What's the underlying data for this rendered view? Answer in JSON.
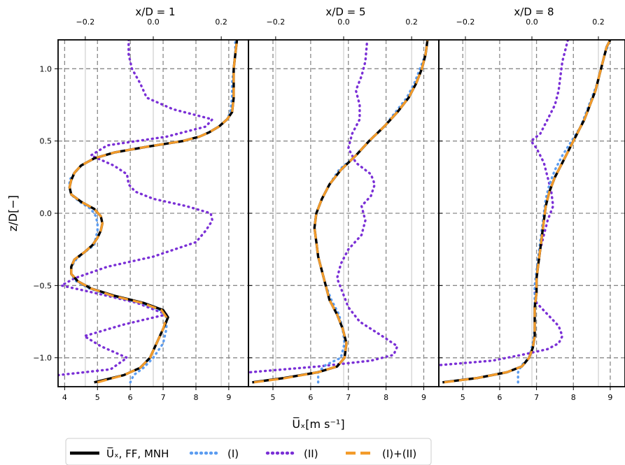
{
  "figure": {
    "ylabel": "z/D[−]",
    "xlabel": "U̅ₓ[m s⁻¹]",
    "legend": {
      "placement": "bottom-center",
      "entries": [
        {
          "label": "U̅ₓ, FF, MNH",
          "color": "#000000",
          "style": "solid"
        },
        {
          "label": "(I)",
          "color": "#5b9cf0",
          "style": "dotted"
        },
        {
          "label": "(II)",
          "color": "#7a2fd6",
          "style": "dotted"
        },
        {
          "label": "(I)+(II)",
          "color": "#f39b2a",
          "style": "dashed"
        }
      ]
    }
  },
  "chart_data": [
    {
      "type": "line",
      "title": "x/D = 1",
      "xlim": [
        3.8,
        9.6
      ],
      "xticks": [
        4,
        5,
        6,
        7,
        8,
        9
      ],
      "top_xlim": [
        -0.28,
        0.28
      ],
      "top_xticks": [
        -0.2,
        0.0,
        0.2
      ],
      "ylim": [
        -1.2,
        1.2
      ],
      "yticks": [
        -1.0,
        -0.5,
        0.0,
        0.5,
        1.0
      ],
      "grid": true,
      "series": [
        {
          "name": "U̅ₓ, FF, MNH",
          "z": [
            -1.17,
            -1.12,
            -1.07,
            -1.0,
            -0.9,
            -0.8,
            -0.72,
            -0.67,
            -0.62,
            -0.57,
            -0.52,
            -0.47,
            -0.42,
            -0.37,
            -0.32,
            -0.27,
            -0.22,
            -0.17,
            -0.12,
            -0.07,
            -0.02,
            0.03,
            0.08,
            0.13,
            0.18,
            0.23,
            0.28,
            0.33,
            0.38,
            0.42,
            0.46,
            0.5,
            0.53,
            0.56,
            0.6,
            0.65,
            0.7,
            0.8,
            0.9,
            1.0,
            1.1,
            1.2
          ],
          "u": [
            4.9,
            5.8,
            6.3,
            6.6,
            6.8,
            7.0,
            7.15,
            7.0,
            6.4,
            5.5,
            4.8,
            4.4,
            4.2,
            4.2,
            4.3,
            4.6,
            4.85,
            5.0,
            5.1,
            5.15,
            5.1,
            4.9,
            4.5,
            4.2,
            4.15,
            4.2,
            4.3,
            4.5,
            4.9,
            5.5,
            6.5,
            7.6,
            8.1,
            8.4,
            8.7,
            8.95,
            9.1,
            9.15,
            9.15,
            9.15,
            9.2,
            9.25
          ]
        },
        {
          "name": "(I)",
          "z": [
            -1.17,
            -1.12,
            -1.07,
            -1.0,
            -0.9,
            -0.8,
            -0.72,
            -0.67,
            -0.62,
            -0.57,
            -0.52,
            -0.47,
            -0.42,
            -0.37,
            -0.32,
            -0.27,
            -0.22,
            -0.17,
            -0.12,
            -0.07,
            -0.02,
            0.03,
            0.08,
            0.13,
            0.18,
            0.23,
            0.28,
            0.33,
            0.38,
            0.42,
            0.46,
            0.5,
            0.53,
            0.56,
            0.6,
            0.65,
            0.7,
            0.8,
            0.9,
            1.0,
            1.1,
            1.2
          ],
          "u": [
            6.0,
            6.1,
            6.4,
            6.7,
            7.0,
            7.1,
            7.1,
            6.9,
            6.3,
            5.4,
            4.75,
            4.35,
            4.2,
            4.2,
            4.35,
            4.6,
            4.9,
            4.95,
            5.0,
            5.0,
            4.95,
            4.8,
            4.45,
            4.2,
            4.15,
            4.15,
            4.3,
            4.5,
            4.9,
            5.5,
            6.5,
            7.6,
            8.1,
            8.4,
            8.7,
            8.95,
            9.05,
            9.1,
            9.1,
            9.15,
            9.2,
            9.2
          ]
        },
        {
          "name": "(II)",
          "z": [
            -1.12,
            -1.08,
            -1.0,
            -0.92,
            -0.85,
            -0.77,
            -0.7,
            -0.62,
            -0.55,
            -0.5,
            -0.45,
            -0.37,
            -0.3,
            -0.2,
            -0.12,
            -0.05,
            0.0,
            0.05,
            0.1,
            0.15,
            0.2,
            0.27,
            0.33,
            0.4,
            0.47,
            0.53,
            0.6,
            0.65,
            0.72,
            0.8,
            0.9,
            1.0,
            1.1,
            1.2
          ],
          "u": [
            3.8,
            5.4,
            5.9,
            5.1,
            4.6,
            5.8,
            7.1,
            6.2,
            4.9,
            3.9,
            4.3,
            5.3,
            6.7,
            8.0,
            8.3,
            8.5,
            8.45,
            7.7,
            6.7,
            6.15,
            5.95,
            5.9,
            5.5,
            4.8,
            5.3,
            7.1,
            8.3,
            8.5,
            7.3,
            6.5,
            6.3,
            6.05,
            5.95,
            5.95
          ]
        },
        {
          "name": "(I)+(II)",
          "z": [
            -1.17,
            -1.12,
            -1.07,
            -1.0,
            -0.9,
            -0.8,
            -0.72,
            -0.67,
            -0.62,
            -0.57,
            -0.52,
            -0.47,
            -0.42,
            -0.37,
            -0.32,
            -0.27,
            -0.22,
            -0.17,
            -0.12,
            -0.07,
            -0.02,
            0.03,
            0.08,
            0.13,
            0.18,
            0.23,
            0.28,
            0.33,
            0.38,
            0.42,
            0.46,
            0.5,
            0.53,
            0.56,
            0.6,
            0.65,
            0.7,
            0.8,
            0.9,
            1.0,
            1.1,
            1.2
          ],
          "u": [
            5.0,
            5.8,
            6.3,
            6.6,
            6.8,
            7.0,
            7.1,
            6.95,
            6.35,
            5.45,
            4.8,
            4.4,
            4.2,
            4.2,
            4.3,
            4.6,
            4.85,
            5.0,
            5.1,
            5.15,
            5.1,
            4.9,
            4.5,
            4.2,
            4.15,
            4.2,
            4.3,
            4.5,
            4.9,
            5.5,
            6.5,
            7.6,
            8.1,
            8.4,
            8.7,
            8.95,
            9.1,
            9.15,
            9.15,
            9.15,
            9.2,
            9.25
          ]
        }
      ]
    },
    {
      "type": "line",
      "title": "x/D = 5",
      "xlim": [
        4.35,
        9.4
      ],
      "xticks": [
        5,
        6,
        7,
        8,
        9
      ],
      "top_xlim": [
        -0.28,
        0.28
      ],
      "top_xticks": [
        -0.2,
        0.0,
        0.2
      ],
      "ylim": [
        -1.2,
        1.2
      ],
      "yticks": [
        -1.0,
        -0.5,
        0.0,
        0.5,
        1.0
      ],
      "grid": true,
      "series": [
        {
          "name": "U̅ₓ, FF, MNH",
          "z": [
            -1.17,
            -1.14,
            -1.1,
            -1.06,
            -1.0,
            -0.9,
            -0.8,
            -0.7,
            -0.6,
            -0.5,
            -0.4,
            -0.3,
            -0.2,
            -0.1,
            0.0,
            0.1,
            0.2,
            0.3,
            0.4,
            0.5,
            0.6,
            0.7,
            0.8,
            0.9,
            1.0,
            1.1,
            1.2
          ],
          "u": [
            4.45,
            5.3,
            6.2,
            6.7,
            6.9,
            6.95,
            6.85,
            6.7,
            6.5,
            6.4,
            6.3,
            6.2,
            6.15,
            6.1,
            6.15,
            6.3,
            6.5,
            6.8,
            7.2,
            7.55,
            7.95,
            8.3,
            8.6,
            8.8,
            8.95,
            9.05,
            9.1
          ]
        },
        {
          "name": "(I)",
          "z": [
            -1.17,
            -1.1,
            -1.05,
            -1.0,
            -0.9,
            -0.8,
            -0.7,
            -0.6,
            -0.5,
            -0.4,
            -0.3,
            -0.2,
            -0.1,
            0.0,
            0.1,
            0.2,
            0.3,
            0.4,
            0.5,
            0.6,
            0.7,
            0.8,
            0.9,
            1.0,
            1.1,
            1.2
          ],
          "u": [
            6.2,
            6.2,
            6.4,
            6.8,
            6.9,
            6.85,
            6.75,
            6.55,
            6.4,
            6.3,
            6.2,
            6.15,
            6.1,
            6.15,
            6.3,
            6.5,
            6.75,
            7.2,
            7.55,
            7.95,
            8.25,
            8.55,
            8.75,
            8.9,
            9.05,
            9.1
          ]
        },
        {
          "name": "(II)",
          "z": [
            -1.1,
            -1.06,
            -1.02,
            -0.98,
            -0.92,
            -0.85,
            -0.75,
            -0.65,
            -0.55,
            -0.45,
            -0.35,
            -0.25,
            -0.15,
            -0.05,
            0.05,
            0.12,
            0.2,
            0.27,
            0.35,
            0.45,
            0.55,
            0.65,
            0.75,
            0.85,
            0.95,
            1.05,
            1.2
          ],
          "u": [
            4.4,
            6.2,
            7.6,
            8.2,
            8.3,
            7.9,
            7.3,
            7.0,
            6.85,
            6.7,
            6.8,
            7.0,
            7.35,
            7.45,
            7.35,
            7.6,
            7.7,
            7.6,
            7.2,
            7.0,
            7.1,
            7.3,
            7.3,
            7.2,
            7.35,
            7.45,
            7.5
          ]
        },
        {
          "name": "(I)+(II)",
          "z": [
            -1.17,
            -1.14,
            -1.1,
            -1.06,
            -1.0,
            -0.9,
            -0.8,
            -0.7,
            -0.6,
            -0.5,
            -0.4,
            -0.3,
            -0.2,
            -0.1,
            0.0,
            0.1,
            0.2,
            0.3,
            0.4,
            0.5,
            0.6,
            0.7,
            0.8,
            0.9,
            1.0,
            1.1,
            1.2
          ],
          "u": [
            4.5,
            5.35,
            6.2,
            6.7,
            6.9,
            6.95,
            6.85,
            6.7,
            6.5,
            6.4,
            6.3,
            6.2,
            6.15,
            6.1,
            6.15,
            6.3,
            6.5,
            6.8,
            7.2,
            7.55,
            7.95,
            8.3,
            8.6,
            8.8,
            8.95,
            9.05,
            9.1
          ]
        }
      ]
    },
    {
      "type": "line",
      "title": "x/D = 8",
      "xlim": [
        4.35,
        9.4
      ],
      "xticks": [
        5,
        6,
        7,
        8,
        9
      ],
      "top_xlim": [
        -0.28,
        0.28
      ],
      "top_xticks": [
        -0.2,
        0.0,
        0.2
      ],
      "ylim": [
        -1.2,
        1.2
      ],
      "yticks": [
        -1.0,
        -0.5,
        0.0,
        0.5,
        1.0
      ],
      "grid": true,
      "series": [
        {
          "name": "U̅ₓ, FF, MNH",
          "z": [
            -1.17,
            -1.14,
            -1.1,
            -1.06,
            -1.0,
            -0.93,
            -0.85,
            -0.75,
            -0.65,
            -0.55,
            -0.45,
            -0.35,
            -0.25,
            -0.15,
            -0.05,
            0.05,
            0.15,
            0.25,
            0.35,
            0.45,
            0.55,
            0.65,
            0.75,
            0.85,
            0.95,
            1.05,
            1.15,
            1.2
          ],
          "u": [
            4.45,
            5.4,
            6.2,
            6.6,
            6.8,
            6.9,
            6.95,
            6.95,
            6.95,
            7.0,
            7.0,
            7.05,
            7.1,
            7.15,
            7.2,
            7.25,
            7.35,
            7.5,
            7.7,
            7.9,
            8.1,
            8.3,
            8.45,
            8.6,
            8.7,
            8.8,
            8.9,
            9.0
          ]
        },
        {
          "name": "(I)",
          "z": [
            -1.17,
            -1.1,
            -1.05,
            -1.0,
            -0.9,
            -0.8,
            -0.7,
            -0.6,
            -0.5,
            -0.4,
            -0.3,
            -0.2,
            -0.1,
            0.0,
            0.1,
            0.2,
            0.3,
            0.4,
            0.5,
            0.6,
            0.7,
            0.8,
            0.9,
            1.0,
            1.1,
            1.2
          ],
          "u": [
            6.5,
            6.5,
            6.6,
            6.8,
            6.9,
            6.95,
            6.95,
            6.95,
            6.95,
            7.0,
            7.05,
            7.1,
            7.15,
            7.2,
            7.25,
            7.35,
            7.5,
            7.7,
            7.95,
            8.2,
            8.35,
            8.5,
            8.65,
            8.75,
            8.85,
            9.0
          ]
        },
        {
          "name": "(II)",
          "z": [
            -1.05,
            -1.02,
            -0.98,
            -0.94,
            -0.9,
            -0.85,
            -0.78,
            -0.7,
            -0.62,
            -0.55,
            -0.45,
            -0.35,
            -0.25,
            -0.15,
            -0.05,
            0.05,
            0.15,
            0.25,
            0.35,
            0.45,
            0.5,
            0.55,
            0.65,
            0.75,
            0.85,
            0.95,
            1.05,
            1.2
          ],
          "u": [
            4.4,
            5.8,
            6.6,
            7.3,
            7.6,
            7.7,
            7.6,
            7.3,
            7.0,
            6.95,
            7.0,
            7.05,
            7.1,
            7.2,
            7.3,
            7.45,
            7.4,
            7.3,
            7.2,
            7.0,
            6.85,
            7.1,
            7.3,
            7.5,
            7.6,
            7.65,
            7.7,
            7.85
          ]
        },
        {
          "name": "(I)+(II)",
          "z": [
            -1.17,
            -1.14,
            -1.1,
            -1.06,
            -1.0,
            -0.93,
            -0.85,
            -0.75,
            -0.65,
            -0.55,
            -0.45,
            -0.35,
            -0.25,
            -0.15,
            -0.05,
            0.05,
            0.15,
            0.25,
            0.35,
            0.45,
            0.55,
            0.65,
            0.75,
            0.85,
            0.95,
            1.05,
            1.15,
            1.2
          ],
          "u": [
            4.5,
            5.4,
            6.2,
            6.6,
            6.8,
            6.9,
            6.95,
            6.95,
            6.95,
            7.0,
            7.0,
            7.05,
            7.1,
            7.15,
            7.2,
            7.25,
            7.35,
            7.5,
            7.7,
            7.9,
            8.1,
            8.3,
            8.45,
            8.6,
            8.7,
            8.8,
            8.9,
            9.0
          ]
        }
      ]
    }
  ]
}
